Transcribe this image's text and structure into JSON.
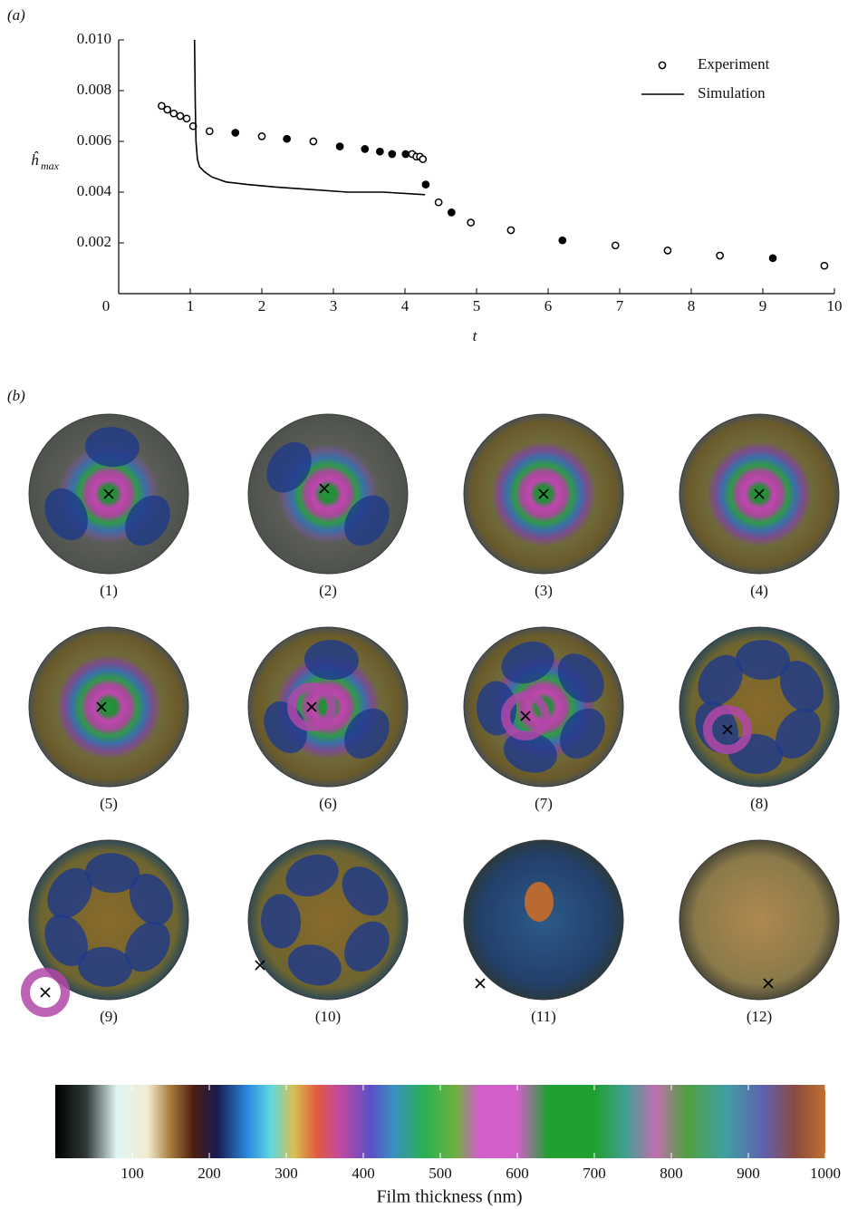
{
  "chart_data": [
    {
      "type": "scatter",
      "panel_label": "(a)",
      "x_label": "t",
      "y_label": "ĥ",
      "y_label_subscript": "max",
      "xlim": [
        0,
        10
      ],
      "xticks": [
        0,
        1,
        2,
        3,
        4,
        5,
        6,
        7,
        8,
        9,
        10
      ],
      "ylim": [
        0,
        0.01
      ],
      "yticks": [
        0.002,
        0.004,
        0.006,
        0.008,
        {
          "value": 0.01,
          "label": "0.010"
        }
      ],
      "legend_position": "upper right",
      "series": [
        {
          "name": "Experiment",
          "kind": "markers",
          "color": "#000000",
          "x": [
            0.6,
            0.68,
            0.77,
            0.86,
            0.95,
            1.04,
            1.27,
            1.63,
            2.0,
            2.35,
            2.72,
            3.09,
            3.44,
            3.65,
            3.82,
            4.01,
            4.1,
            4.16,
            4.21,
            4.25,
            4.29,
            4.47,
            4.65,
            4.92,
            5.48,
            6.2,
            6.94,
            7.67,
            8.4,
            9.14,
            9.86
          ],
          "values": [
            0.0074,
            0.00725,
            0.0071,
            0.007,
            0.0069,
            0.0066,
            0.0064,
            0.00634,
            0.0062,
            0.0061,
            0.006,
            0.0058,
            0.0057,
            0.0056,
            0.0055,
            0.0055,
            0.0055,
            0.0054,
            0.0054,
            0.0053,
            0.0043,
            0.0036,
            0.0032,
            0.0028,
            0.0025,
            0.0021,
            0.0019,
            0.0017,
            0.0015,
            0.0014,
            0.0011
          ],
          "filled": [
            false,
            false,
            false,
            false,
            false,
            false,
            false,
            true,
            false,
            true,
            false,
            true,
            true,
            true,
            true,
            true,
            false,
            false,
            false,
            false,
            true,
            false,
            true,
            false,
            false,
            true,
            false,
            false,
            false,
            true,
            false
          ]
        },
        {
          "name": "Simulation",
          "kind": "line",
          "color": "#000000",
          "x": [
            1.06,
            1.07,
            1.08,
            1.1,
            1.13,
            1.2,
            1.3,
            1.5,
            1.8,
            2.2,
            2.7,
            3.2,
            3.7,
            4.28
          ],
          "values": [
            0.01,
            0.0075,
            0.006,
            0.0053,
            0.005,
            0.0048,
            0.0046,
            0.0044,
            0.0043,
            0.0042,
            0.0041,
            0.004,
            0.004,
            0.0039
          ]
        }
      ]
    },
    {
      "type": "colorbar",
      "x_label": "Film thickness (nm)",
      "xlim": [
        0,
        1000
      ],
      "xticks": [
        100,
        200,
        300,
        400,
        500,
        600,
        700,
        800,
        900,
        1000
      ]
    }
  ],
  "panel_b": {
    "label": "(b)",
    "images": [
      "(1)",
      "(2)",
      "(3)",
      "(4)",
      "(5)",
      "(6)",
      "(7)",
      "(8)",
      "(9)",
      "(10)",
      "(11)",
      "(12)"
    ]
  }
}
